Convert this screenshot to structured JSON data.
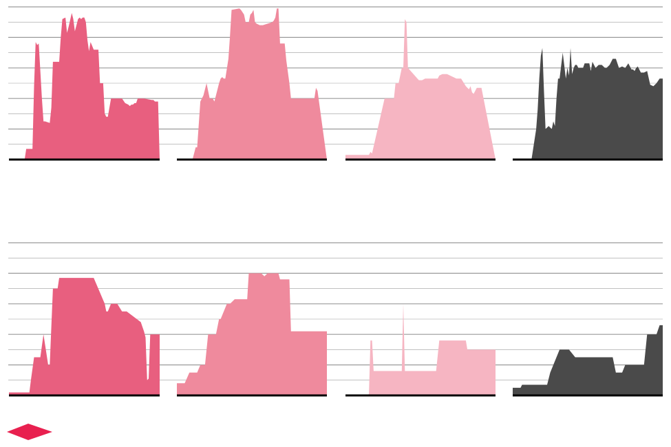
{
  "colors": {
    "c1": "#e85f7f",
    "c2": "#ef8a9d",
    "c3": "#f6b5c2",
    "c4": "#4a4a4a",
    "grid": "#9a9a9a",
    "baseline": "#000000",
    "logo": "#e8204f"
  },
  "logo": {
    "icon": "diamond-logo-icon"
  },
  "chart_data": [
    {
      "type": "area",
      "row": 1,
      "ylim": [
        0,
        10
      ],
      "grid": true,
      "xlabel": "",
      "ylabel": "",
      "panels": [
        {
          "color_key": "c1",
          "x": [
            0,
            5,
            10,
            11,
            15,
            16,
            17,
            18,
            19,
            21,
            22,
            23,
            26,
            27,
            28,
            32,
            33,
            34,
            36,
            37,
            38,
            40,
            41,
            42,
            44,
            45,
            46,
            47,
            48,
            49,
            50,
            51,
            52,
            54,
            57,
            58,
            60,
            61,
            62,
            63,
            65,
            72,
            74,
            76,
            77,
            78,
            79,
            80,
            81,
            82,
            86,
            91,
            92,
            93,
            95,
            96
          ],
          "y": [
            0,
            0,
            0,
            0.7,
            0.7,
            4.8,
            7.7,
            7.5,
            7.6,
            4.0,
            2.5,
            2.5,
            2.4,
            3.4,
            6.4,
            6.4,
            8.0,
            9.2,
            9.3,
            8.3,
            8.7,
            9.6,
            9.2,
            8.4,
            9.2,
            9.3,
            9.2,
            9.3,
            9.3,
            9.0,
            7.8,
            7.1,
            7.7,
            7.2,
            7.2,
            5.0,
            5.0,
            3.0,
            2.8,
            2.8,
            4.0,
            4.0,
            3.7,
            3.6,
            3.5,
            3.6,
            3.6,
            3.7,
            3.7,
            4.0,
            4.0,
            3.9,
            3.9,
            3.8,
            3.8,
            0
          ]
        },
        {
          "color_key": "c2",
          "x": [
            0,
            7,
            10,
            12,
            13,
            15,
            17,
            19,
            21,
            23,
            24,
            25,
            27,
            28,
            29,
            30,
            31,
            33,
            34,
            35,
            40,
            41,
            43,
            44,
            46,
            47,
            48,
            49,
            50,
            51,
            53,
            55,
            61,
            62,
            63,
            64,
            65,
            66,
            67,
            69,
            70,
            72,
            73,
            87,
            88,
            89,
            90,
            96
          ],
          "y": [
            0,
            0,
            0,
            0.8,
            0.8,
            3.8,
            4.2,
            5.0,
            4.0,
            4.0,
            3.8,
            4.2,
            5.0,
            5.3,
            5.4,
            5.3,
            5.3,
            6.6,
            8.1,
            9.8,
            9.9,
            9.8,
            9.5,
            9.0,
            9.0,
            9.5,
            9.6,
            9.8,
            9.0,
            8.9,
            8.8,
            8.8,
            9.0,
            9.1,
            9.3,
            9.9,
            9.9,
            7.6,
            7.6,
            7.6,
            6.5,
            5.0,
            4.0,
            4.0,
            4.0,
            4.7,
            4.5,
            0
          ]
        },
        {
          "color_key": "c3",
          "x": [
            0,
            10,
            11,
            13,
            15,
            16,
            17,
            25,
            26,
            28,
            31,
            32,
            34,
            36,
            37,
            38,
            39,
            40,
            46,
            47,
            49,
            51,
            52,
            57,
            59,
            60,
            62,
            65,
            71,
            74,
            77,
            79,
            80,
            81,
            82,
            84,
            86,
            87,
            96
          ],
          "y": [
            0.3,
            0.3,
            0.3,
            0.3,
            0.3,
            0.5,
            0.4,
            4.0,
            4.0,
            4.0,
            4.0,
            5.0,
            5.0,
            6.0,
            6.0,
            9.2,
            9.0,
            6.0,
            5.3,
            5.2,
            5.2,
            5.3,
            5.3,
            5.3,
            5.3,
            5.5,
            5.6,
            5.6,
            5.3,
            5.3,
            4.8,
            4.6,
            4.8,
            4.4,
            4.3,
            4.7,
            4.7,
            4.7,
            0
          ]
        },
        {
          "color_key": "c4",
          "x": [
            0,
            12,
            15,
            16,
            17,
            18,
            19,
            20,
            21,
            23,
            25,
            26,
            27,
            28,
            29,
            30,
            32,
            34,
            35,
            36,
            37,
            38,
            39,
            40,
            41,
            42,
            43,
            45,
            46,
            47,
            48,
            49,
            50,
            51,
            53,
            55,
            57,
            59,
            60,
            62,
            64,
            66,
            68,
            70,
            72,
            74,
            76,
            77,
            78,
            79,
            80,
            82,
            84,
            86,
            88,
            90,
            92,
            94,
            96
          ],
          "y": [
            0,
            0,
            2.0,
            3.3,
            5.3,
            6.8,
            7.3,
            4.5,
            2.0,
            2.2,
            2.0,
            2.5,
            2.2,
            4.0,
            5.3,
            5.3,
            7.0,
            5.3,
            6.0,
            5.5,
            7.3,
            5.6,
            6.0,
            6.2,
            6.2,
            6.0,
            6.0,
            6.0,
            6.3,
            6.3,
            6.3,
            6.3,
            5.8,
            6.4,
            6.0,
            6.2,
            6.2,
            6.0,
            6.0,
            6.2,
            6.6,
            6.6,
            6.0,
            6.1,
            6.0,
            6.3,
            5.9,
            5.9,
            5.8,
            6.0,
            6.1,
            5.7,
            5.7,
            5.8,
            4.9,
            4.8,
            5.0,
            5.3,
            5.3
          ]
        }
      ]
    },
    {
      "type": "area",
      "row": 2,
      "ylim": [
        0,
        10
      ],
      "grid": true,
      "xlabel": "",
      "ylabel": "",
      "panels": [
        {
          "color_key": "c1",
          "x": [
            0,
            12,
            13,
            14,
            16,
            18,
            19,
            20,
            22,
            25,
            26,
            28,
            31,
            32,
            34,
            46,
            48,
            54,
            61,
            62,
            63,
            65,
            69,
            72,
            75,
            84,
            85,
            86,
            87,
            88,
            89,
            90,
            91,
            92,
            93,
            96
          ],
          "y": [
            0.2,
            0.2,
            0.2,
            1.0,
            2.5,
            2.5,
            2.5,
            2.5,
            4.0,
            2.0,
            2.0,
            7.0,
            7.0,
            7.7,
            7.7,
            7.7,
            7.7,
            7.7,
            6.0,
            5.5,
            5.5,
            6.0,
            6.0,
            5.5,
            5.5,
            4.8,
            4.5,
            4.2,
            3.8,
            1.0,
            1.1,
            4.0,
            4.0,
            4.0,
            4.0,
            4.0
          ]
        },
        {
          "color_key": "c2",
          "x": [
            0,
            2,
            5,
            8,
            10,
            13,
            15,
            16,
            18,
            20,
            24,
            25,
            27,
            28,
            32,
            34,
            37,
            38,
            40,
            44,
            45,
            46,
            47,
            48,
            49,
            50,
            51,
            54,
            56,
            57,
            58,
            60,
            63,
            65,
            66,
            67,
            68,
            69,
            70,
            71,
            72,
            73,
            76,
            96
          ],
          "y": [
            0.8,
            0.8,
            0.8,
            1.5,
            1.5,
            1.5,
            2.0,
            2.0,
            2.0,
            4.0,
            4.0,
            4.0,
            5.0,
            5.0,
            6.0,
            6.0,
            6.3,
            6.3,
            6.3,
            6.3,
            6.3,
            8.0,
            8.0,
            8.0,
            8.0,
            8.0,
            8.0,
            8.0,
            7.8,
            7.9,
            8.0,
            8.0,
            8.0,
            8.0,
            7.6,
            7.6,
            7.6,
            7.6,
            7.6,
            7.6,
            7.6,
            4.2,
            4.2,
            4.2
          ]
        },
        {
          "color_key": "c3",
          "x": [
            0,
            14,
            15,
            16,
            17,
            18,
            22,
            30,
            36,
            37,
            38,
            39,
            40,
            42,
            43,
            50,
            58,
            60,
            68,
            71,
            74,
            77,
            78,
            80,
            83,
            86,
            96
          ],
          "y": [
            0,
            0,
            0.1,
            3.6,
            3.6,
            1.6,
            1.6,
            1.6,
            1.6,
            6.0,
            1.6,
            1.6,
            1.6,
            1.6,
            1.6,
            1.6,
            1.6,
            3.6,
            3.6,
            3.6,
            3.6,
            3.6,
            3.0,
            3.0,
            3.0,
            3.0,
            3.0
          ]
        },
        {
          "color_key": "c4",
          "x": [
            0,
            5,
            6,
            8,
            10,
            12,
            14,
            16,
            18,
            20,
            22,
            24,
            30,
            36,
            40,
            44,
            46,
            48,
            50,
            52,
            54,
            56,
            58,
            60,
            64,
            66,
            68,
            70,
            72,
            74,
            76,
            78,
            80,
            82,
            84,
            86,
            88,
            90,
            92,
            94,
            96
          ],
          "y": [
            0.5,
            0.5,
            0.7,
            0.7,
            0.7,
            0.7,
            0.7,
            0.7,
            0.7,
            0.7,
            0.7,
            1.5,
            3.0,
            3.0,
            2.5,
            2.5,
            2.5,
            2.5,
            2.5,
            2.5,
            2.5,
            2.5,
            2.5,
            2.5,
            2.5,
            1.5,
            1.5,
            1.5,
            2.0,
            2.0,
            2.0,
            2.0,
            2.0,
            2.0,
            2.0,
            4.0,
            4.0,
            4.0,
            4.0,
            4.6,
            4.6
          ]
        }
      ]
    }
  ]
}
